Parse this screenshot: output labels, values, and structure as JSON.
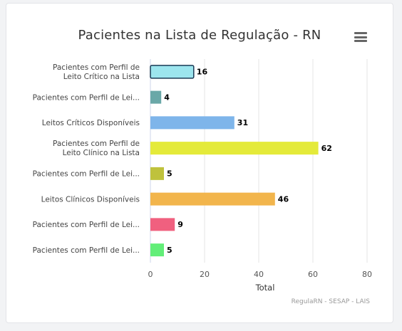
{
  "chart_data": {
    "type": "bar",
    "orientation": "horizontal",
    "title": "Pacientes na Lista de Regulação - RN",
    "xlabel": "Total",
    "ylabel": "",
    "xlim": [
      0,
      80
    ],
    "xticks": [
      0,
      20,
      40,
      60,
      80
    ],
    "grid": true,
    "categories": [
      "Pacientes com Perfil de Leito Crítico na Lista",
      "Pacientes com Perfil de Lei...",
      "Leitos Críticos Disponíveis",
      "Pacientes com Perfil de Leito Clínico na Lista",
      "Pacientes com Perfil de Lei...",
      "Leitos Clínicos Disponíveis",
      "Pacientes com Perfil de Lei...",
      "Pacientes com Perfil de Lei..."
    ],
    "values": [
      16,
      4,
      31,
      62,
      5,
      46,
      9,
      5
    ],
    "colors": [
      "#9ce5ee",
      "#6aa8a8",
      "#7eb5ea",
      "#e4ea3a",
      "#bfc23c",
      "#f2b54c",
      "#f0607f",
      "#62ee78"
    ],
    "highlighted_index": 0,
    "highlight_border_color": "#1b3a55"
  },
  "credits": "RegulaRN - SESAP - LAIS",
  "menu": {
    "icon": "hamburger-menu-icon"
  }
}
